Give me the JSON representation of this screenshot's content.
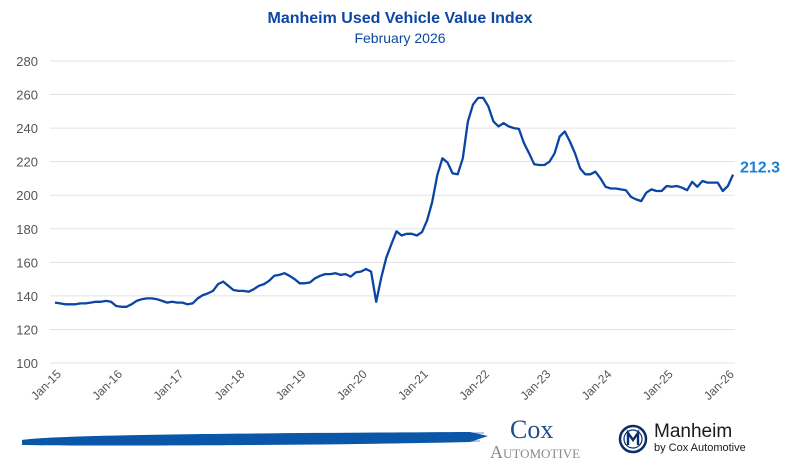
{
  "chart_data": {
    "type": "line",
    "title": "Manheim Used Vehicle Value Index",
    "subtitle": "February 2026",
    "xlabel": "",
    "ylabel": "",
    "ylim": [
      100,
      280
    ],
    "yticks": [
      100,
      120,
      140,
      160,
      180,
      200,
      220,
      240,
      260,
      280
    ],
    "xtick_labels": [
      "Jan-15",
      "Jan-16",
      "Jan-17",
      "Jan-18",
      "Jan-19",
      "Jan-20",
      "Jan-21",
      "Jan-22",
      "Jan-23",
      "Jan-24",
      "Jan-25",
      "Jan-26"
    ],
    "x_start": "Jan-15",
    "x_end": "Feb-26",
    "grid": true,
    "end_label": "212.3",
    "series": [
      {
        "name": "Manheim Used Vehicle Value Index",
        "color": "#0b45a3",
        "values": [
          136,
          135.5,
          135,
          135,
          135,
          135.5,
          135.5,
          136,
          136.5,
          136.5,
          137,
          136.5,
          134,
          133.5,
          133.5,
          135,
          137,
          138,
          138.5,
          138.5,
          138,
          137,
          136,
          136.5,
          136,
          136,
          135,
          135.5,
          138.5,
          140.5,
          141.5,
          143,
          147,
          148.5,
          146,
          143.5,
          143,
          143,
          142.5,
          144,
          146,
          147,
          149,
          152,
          152.5,
          153.5,
          152,
          150,
          147.5,
          147.5,
          148,
          150.5,
          152,
          153,
          153,
          153.5,
          152.5,
          153,
          151.5,
          154,
          154.5,
          156,
          154.5,
          136.5,
          151,
          163,
          171,
          178.5,
          176,
          177,
          177,
          176,
          178,
          185,
          196,
          212,
          222,
          219.5,
          213,
          212.5,
          222,
          244,
          254,
          258,
          258,
          253,
          244,
          241,
          243,
          241,
          240,
          239.5,
          231,
          225,
          218.5,
          218,
          218,
          220,
          225,
          235,
          238,
          232,
          225,
          216,
          212.5,
          212.5,
          214,
          210,
          205,
          204,
          204,
          203.5,
          203,
          199,
          197.5,
          196.5,
          201.5,
          203.5,
          202.5,
          202.5,
          205.5,
          205,
          205.5,
          204.5,
          203,
          208,
          205,
          208.5,
          207.5,
          207.5,
          207.5,
          202.5,
          205.5,
          212.3
        ]
      }
    ]
  },
  "footer": {
    "cox_line1": "Cox",
    "cox_line2": "Automotive",
    "manheim_name": "Manheim",
    "manheim_tagline": "by Cox Automotive",
    "brush_color": "#0a56a8",
    "label_color": "#1b7fd6"
  }
}
